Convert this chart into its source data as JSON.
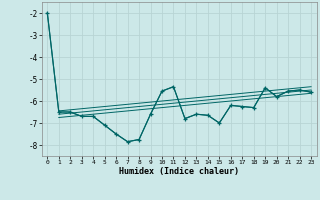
{
  "xlabel": "Humidex (Indice chaleur)",
  "xlim": [
    -0.5,
    23.5
  ],
  "ylim": [
    -8.5,
    -1.5
  ],
  "yticks": [
    -8,
    -7,
    -6,
    -5,
    -4,
    -3,
    -2
  ],
  "xticks": [
    0,
    1,
    2,
    3,
    4,
    5,
    6,
    7,
    8,
    9,
    10,
    11,
    12,
    13,
    14,
    15,
    16,
    17,
    18,
    19,
    20,
    21,
    22,
    23
  ],
  "bg_color": "#cce8e8",
  "grid_color": "#b8d4d4",
  "line_color": "#006666",
  "main_x": [
    0,
    1,
    2,
    3,
    4,
    5,
    6,
    7,
    8,
    9,
    10,
    11,
    12,
    13,
    14,
    15,
    16,
    17,
    18,
    19,
    20,
    21,
    22,
    23
  ],
  "main_y": [
    -2.0,
    -6.5,
    -6.5,
    -6.7,
    -6.7,
    -7.1,
    -7.5,
    -7.85,
    -7.75,
    -6.6,
    -5.55,
    -5.35,
    -6.8,
    -6.6,
    -6.65,
    -7.0,
    -6.2,
    -6.25,
    -6.3,
    -5.4,
    -5.8,
    -5.55,
    -5.5,
    -5.6
  ],
  "line2_x": [
    0,
    1,
    2,
    3,
    4,
    5,
    6,
    7,
    8,
    9,
    10,
    11,
    12,
    13,
    14,
    15,
    16,
    17,
    18,
    19,
    20,
    21,
    22,
    23
  ],
  "line2_y": [
    -2.0,
    -6.5,
    -6.5,
    -6.7,
    -6.7,
    -7.1,
    -7.5,
    -7.85,
    -7.75,
    -6.6,
    -5.55,
    -5.35,
    -6.8,
    -6.6,
    -6.65,
    -7.0,
    -6.2,
    -6.25,
    -6.3,
    -5.4,
    -5.8,
    -5.55,
    -5.5,
    -5.6
  ],
  "trend1_x": [
    1,
    23
  ],
  "trend1_y": [
    -6.45,
    -5.35
  ],
  "trend2_x": [
    1,
    23
  ],
  "trend2_y": [
    -6.6,
    -5.5
  ],
  "trend3_x": [
    1,
    23
  ],
  "trend3_y": [
    -6.75,
    -5.65
  ]
}
